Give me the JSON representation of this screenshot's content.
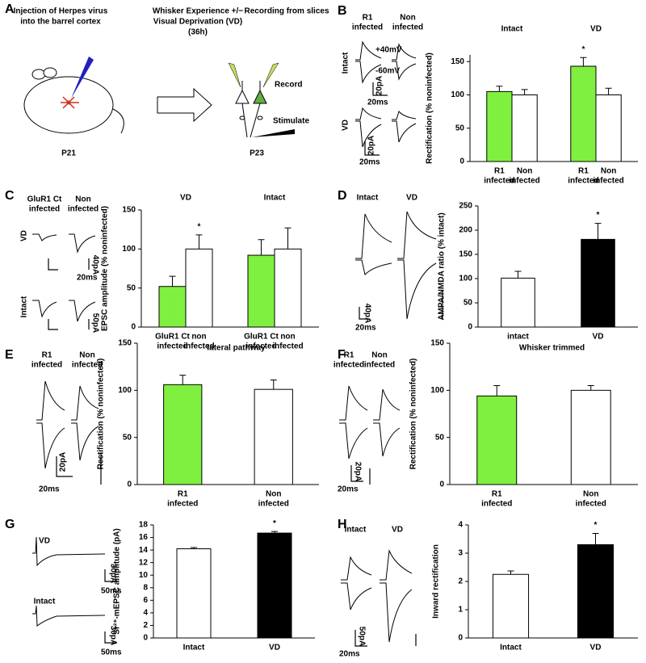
{
  "panels": [
    "A",
    "B",
    "C",
    "D",
    "E",
    "F",
    "G",
    "H"
  ],
  "schematic": {
    "step1": [
      "Injection of Herpes virus",
      "into the barrel cortex"
    ],
    "step2": [
      "Whisker Experience +/−",
      "Visual Deprivation (VD)",
      "(36h)"
    ],
    "step3": "Recording from slices",
    "record": "Record",
    "stimulate": "Stimulate",
    "p21": "P21",
    "p23": "P23"
  },
  "traces": {
    "B": {
      "col1": [
        "R1",
        "infected"
      ],
      "col2": [
        "Non",
        "infected"
      ],
      "row1": "Intact",
      "row2": "VD",
      "v1": "+40mV",
      "v2": "-60mV",
      "sy1": "20pA",
      "sx1": "20ms",
      "sy2": "20pA",
      "sx2": "20ms"
    },
    "C": {
      "col1": [
        "GluR1 Ct",
        "infected"
      ],
      "col2": [
        "Non",
        "infected"
      ],
      "row1": "VD",
      "row2": "Intact",
      "sy1": "40pA",
      "sx1": "20ms",
      "sy2": "50pA"
    },
    "D": {
      "col1": "Intact",
      "col2": "VD",
      "sy": "40pA",
      "sx": "20ms"
    },
    "E": {
      "col1": [
        "R1",
        "infected"
      ],
      "col2": [
        "Non",
        "infected"
      ],
      "sy": "20pA",
      "sx": "20ms"
    },
    "F": {
      "col1": [
        "R1",
        "infected"
      ],
      "col2": [
        "Non",
        "infected"
      ],
      "sy": "20pA",
      "sx": "20ms"
    },
    "G": {
      "row1": "VD",
      "row2": "Intact",
      "sy1": "30pA",
      "sx1": "50ms",
      "sy2": "30pA",
      "sx2": "50ms"
    },
    "H": {
      "col1": "Intact",
      "col2": "VD",
      "sy": "50pA",
      "sx": "20ms"
    }
  },
  "chart_data": [
    {
      "type": "bar",
      "ylabel": "Rectification (% noninfected)",
      "ylim": [
        0,
        160
      ],
      "yticks": [
        0,
        50,
        100,
        150
      ],
      "groups": [
        "Intact",
        "VD"
      ],
      "categories": [
        [
          "R1",
          "infected"
        ],
        [
          "Non",
          "infected"
        ],
        [
          "R1",
          "infected"
        ],
        [
          "Non",
          "infected"
        ]
      ],
      "values": [
        105,
        100,
        143,
        100
      ],
      "errors": [
        8,
        8,
        13,
        10
      ],
      "colors": [
        "#80f040",
        "#ffffff",
        "#80f040",
        "#ffffff"
      ],
      "annotations": [
        {
          "text": "*",
          "bar": 2
        }
      ]
    },
    {
      "type": "bar",
      "ylabel": "EPSC amplitude (% noninfected)",
      "ylim": [
        0,
        150
      ],
      "yticks": [
        0,
        50,
        100,
        150
      ],
      "groups": [
        "VD",
        "Intact"
      ],
      "categories": [
        [
          "GluR1 Ct",
          "infected"
        ],
        [
          "non",
          "infected"
        ],
        [
          "GluR1 Ct",
          "infected"
        ],
        [
          "non",
          "infected"
        ]
      ],
      "values": [
        52,
        100,
        92,
        100
      ],
      "errors": [
        13,
        18,
        20,
        27
      ],
      "colors": [
        "#80f040",
        "#ffffff",
        "#80f040",
        "#ffffff"
      ],
      "annotations": [
        {
          "text": "*",
          "bar": 1
        }
      ]
    },
    {
      "type": "bar",
      "ylabel": "AMPA/NMDA ratio (% intact)",
      "ylim": [
        0,
        250
      ],
      "yticks": [
        0,
        50,
        100,
        150,
        200,
        250
      ],
      "categories": [
        [
          "intact"
        ],
        [
          "VD"
        ]
      ],
      "values": [
        101,
        181
      ],
      "errors": [
        14,
        33
      ],
      "colors": [
        "#ffffff",
        "#000000"
      ],
      "annotations": [
        {
          "text": "*",
          "bar": 1
        }
      ]
    },
    {
      "type": "bar",
      "title": "lateral pathway",
      "ylabel": "Rectification (% noninfected)",
      "ylim": [
        0,
        150
      ],
      "yticks": [
        0,
        50,
        100,
        150
      ],
      "categories": [
        [
          "R1",
          "infected"
        ],
        [
          "Non",
          "infected"
        ]
      ],
      "values": [
        106,
        101
      ],
      "errors": [
        10,
        10
      ],
      "colors": [
        "#80f040",
        "#ffffff"
      ]
    },
    {
      "type": "bar",
      "title": "Whisker trimmed",
      "ylabel": "Rectification (% noninfected)",
      "ylim": [
        0,
        150
      ],
      "yticks": [
        0,
        50,
        100,
        150
      ],
      "categories": [
        [
          "R1",
          "infected"
        ],
        [
          "Non",
          "infected"
        ]
      ],
      "values": [
        94,
        100
      ],
      "errors": [
        11,
        5
      ],
      "colors": [
        "#80f040",
        "#ffffff"
      ]
    },
    {
      "type": "bar",
      "ylabel": "Sr²⁺-mEPSC amplitude (pA)",
      "ylim": [
        0,
        18
      ],
      "yticks": [
        0,
        2,
        4,
        6,
        8,
        10,
        12,
        14,
        16,
        18
      ],
      "categories": [
        [
          "Intact"
        ],
        [
          "VD"
        ]
      ],
      "values": [
        14.2,
        16.7
      ],
      "errors": [
        0.2,
        0.25
      ],
      "colors": [
        "#ffffff",
        "#000000"
      ],
      "annotations": [
        {
          "text": "*",
          "bar": 1
        }
      ]
    },
    {
      "type": "bar",
      "ylabel": "Inward rectification",
      "ylim": [
        0,
        4
      ],
      "yticks": [
        0,
        1,
        2,
        3,
        4
      ],
      "categories": [
        [
          "Intact"
        ],
        [
          "VD"
        ]
      ],
      "values": [
        2.25,
        3.3
      ],
      "errors": [
        0.12,
        0.4
      ],
      "colors": [
        "#ffffff",
        "#000000"
      ],
      "annotations": [
        {
          "text": "*",
          "bar": 1
        }
      ]
    }
  ]
}
